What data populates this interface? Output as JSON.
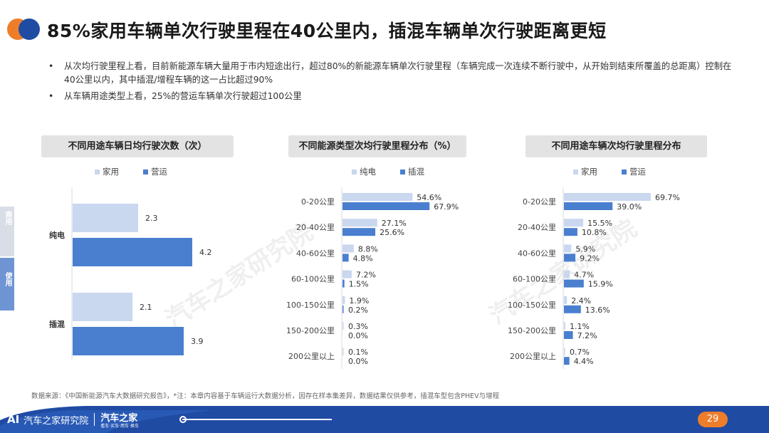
{
  "header": {
    "title": "85%家用车辆单次行驶里程在40公里内，插混车辆单次行驶距离更短"
  },
  "bullets": [
    "从次均行驶里程上看，目前新能源车辆大量用于市内短途出行，超过80%的新能源车辆单次行驶里程（车辆完成一次连续不断行驶中，从开始到结束所覆盖的总距离）控制在40公里以内，其中插混/增程车辆的这一占比超过90%",
    "从车辆用途类型上看，25%的营运车辆单次行驶超过100公里"
  ],
  "side_tabs": {
    "commercial": "商用",
    "usage": "使用"
  },
  "watermark": "汽车之家研究院",
  "source": "数据来源：《中国新能源汽车大数据研究报告》，*注：本章内容基于车辆运行大数据分析，因存在样本集差异，数据结果仅供参考，插混车型包含PHEV与增程",
  "footer": {
    "logo_text": "AI",
    "logo_label": "汽车之家研究院",
    "brand": "汽车之家",
    "brand_sub": "看车·买车·用车·换车",
    "page_number": "29"
  },
  "colors": {
    "light": "#c9d7ef",
    "dark": "#4a7fcf",
    "accent": "#ee7d2a",
    "navy": "#1f4ba3"
  },
  "chart_data": [
    {
      "type": "bar",
      "orientation": "horizontal",
      "title": "不同用途车辆日均行驶次数（次）",
      "categories": [
        "纯电",
        "插混"
      ],
      "series": [
        {
          "name": "家用",
          "values": [
            2.3,
            2.1
          ]
        },
        {
          "name": "营运",
          "values": [
            4.2,
            3.9
          ]
        }
      ],
      "value_labels": {
        "家用": [
          "2.3",
          "2.1"
        ],
        "营运": [
          "4.2",
          "3.9"
        ]
      },
      "legend": "top"
    },
    {
      "type": "bar",
      "orientation": "horizontal",
      "title": "不同能源类型次均行驶里程分布（%）",
      "categories": [
        "0-20公里",
        "20-40公里",
        "40-60公里",
        "60-100公里",
        "100-150公里",
        "150-200公里",
        "200公里以上"
      ],
      "series": [
        {
          "name": "纯电",
          "values": [
            54.6,
            27.1,
            8.8,
            7.2,
            1.9,
            0.3,
            0.1
          ]
        },
        {
          "name": "插混",
          "values": [
            67.9,
            25.6,
            4.8,
            1.5,
            0.2,
            0.0,
            0.0
          ]
        }
      ],
      "value_labels": {
        "纯电": [
          "54.6%",
          "27.1%",
          "8.8%",
          "7.2%",
          "1.9%",
          "0.3%",
          "0.1%"
        ],
        "插混": [
          "67.9%",
          "25.6%",
          "4.8%",
          "1.5%",
          "0.2%",
          "0.0%",
          "0.0%"
        ]
      },
      "legend": "top"
    },
    {
      "type": "bar",
      "orientation": "horizontal",
      "title": "不同用途车辆次均行驶里程分布",
      "categories": [
        "0-20公里",
        "20-40公里",
        "40-60公里",
        "60-100公里",
        "100-150公里",
        "150-200公里",
        "200公里以上"
      ],
      "series": [
        {
          "name": "家用",
          "values": [
            69.7,
            15.5,
            5.9,
            4.7,
            2.4,
            1.1,
            0.7
          ]
        },
        {
          "name": "营运",
          "values": [
            39.0,
            10.8,
            9.2,
            15.9,
            13.6,
            7.2,
            4.4
          ]
        }
      ],
      "value_labels": {
        "家用": [
          "69.7%",
          "15.5%",
          "5.9%",
          "4.7%",
          "2.4%",
          "1.1%",
          "0.7%"
        ],
        "营运": [
          "39.0%",
          "10.8%",
          "9.2%",
          "15.9%",
          "13.6%",
          "7.2%",
          "4.4%"
        ]
      },
      "legend": "top"
    }
  ]
}
